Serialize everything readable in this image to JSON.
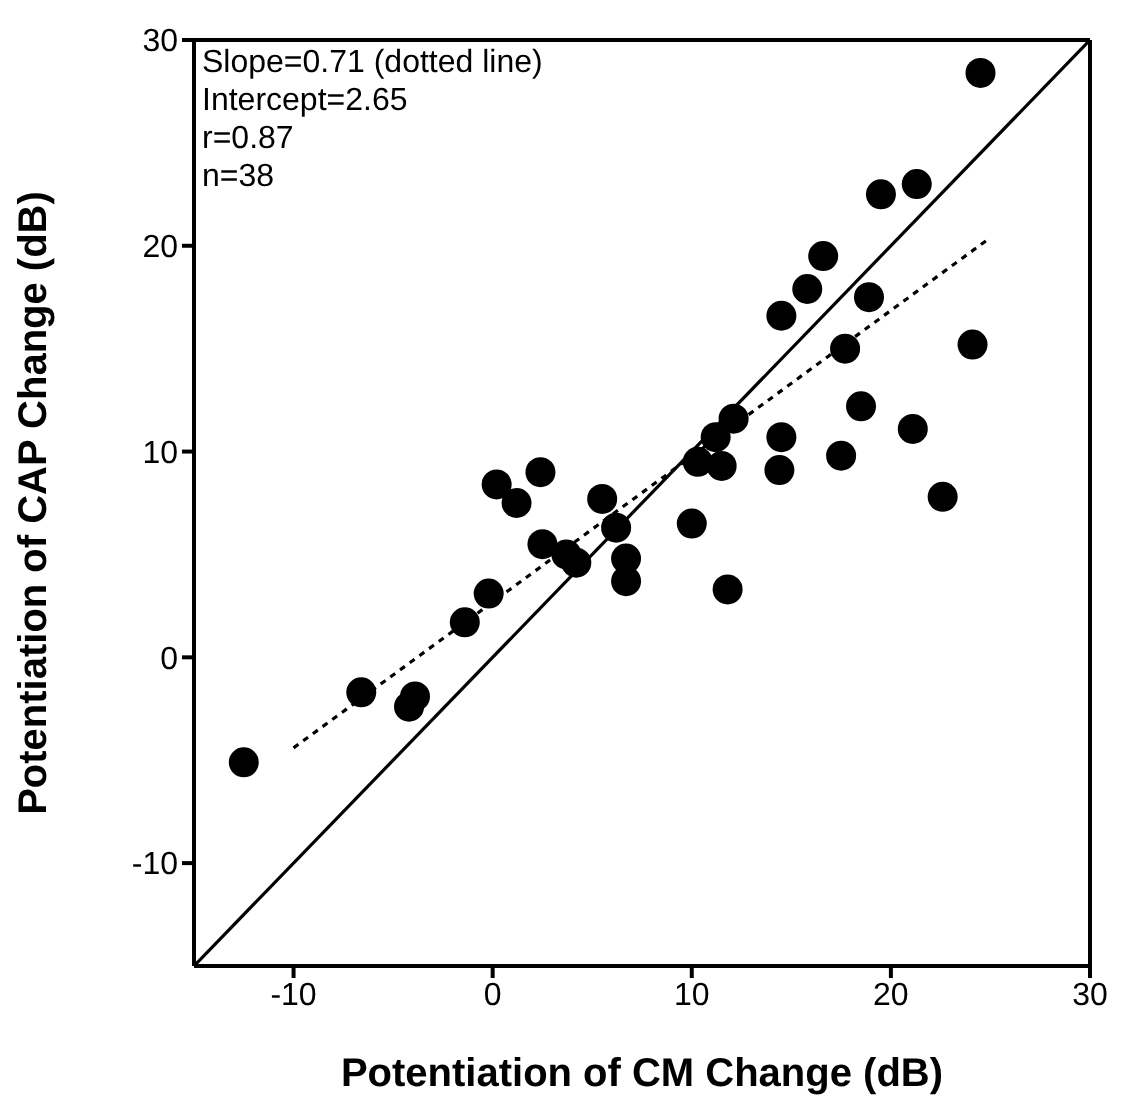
{
  "chart_data": {
    "type": "scatter",
    "xlabel": "Potentiation of CM Change (dB)",
    "ylabel": "Potentiation of CAP Change (dB)",
    "xlim": [
      -15,
      30
    ],
    "xticks": [
      -10,
      0,
      10,
      20,
      30
    ],
    "ylim": [
      -15,
      30
    ],
    "yticks": [
      -10,
      0,
      10,
      20,
      30
    ],
    "grid": false,
    "legend": false,
    "annotations": [
      "Slope=0.71 (dotted line)",
      "Intercept=2.65",
      "r=0.87",
      "n=38"
    ],
    "series": [
      {
        "color": "#000000",
        "marker": "circle",
        "x": [
          24.5,
          19.5,
          21.3,
          16.6,
          15.8,
          14.5,
          18.9,
          17.7,
          24.1,
          18.5,
          21.1,
          14.5,
          14.4,
          17.5,
          12.1,
          11.2,
          10.3,
          11.5,
          22.6,
          0.2,
          2.4,
          1.2,
          5.5,
          2.5,
          3.7,
          4.2,
          6.2,
          6.7,
          6.7,
          10.0,
          11.8,
          -0.2,
          -1.4,
          -6.6,
          -3.9,
          -4.2,
          -12.5
        ],
        "values": [
          28.4,
          22.5,
          23.0,
          19.5,
          17.9,
          16.6,
          17.5,
          15.0,
          15.2,
          12.2,
          11.1,
          10.7,
          9.1,
          9.8,
          11.6,
          10.7,
          9.5,
          9.3,
          7.8,
          8.4,
          9.0,
          7.5,
          7.7,
          5.5,
          5.0,
          4.6,
          6.3,
          4.8,
          3.7,
          6.5,
          3.3,
          3.1,
          1.7,
          -1.7,
          -1.9,
          -2.4,
          -5.1
        ]
      },
      {
        "type": "line",
        "color": "#000000",
        "line_style": "solid",
        "x": [
          -15,
          30
        ],
        "values": [
          -15,
          30
        ]
      },
      {
        "type": "line",
        "color": "#000000",
        "line_style": "dotted",
        "x": [
          -10,
          25
        ],
        "values": [
          -4.4,
          20.4
        ]
      }
    ]
  }
}
